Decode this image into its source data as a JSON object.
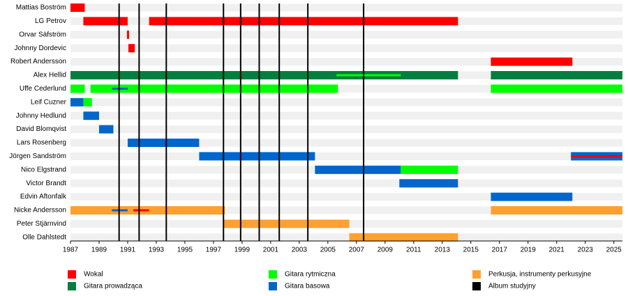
{
  "chart_data": {
    "type": "timeline",
    "xlim": [
      1987,
      2025.6
    ],
    "xticks": [
      1987,
      1989,
      1991,
      1993,
      1995,
      1997,
      1999,
      2001,
      2003,
      2005,
      2007,
      2009,
      2011,
      2013,
      2015,
      2017,
      2019,
      2021,
      2023,
      2025
    ],
    "roles": [
      {
        "name": "Wokal",
        "color": "#ff0000"
      },
      {
        "name": "Gitara prowadząca",
        "color": "#007f3f"
      },
      {
        "name": "Gitara rytmiczna",
        "color": "#00ff00"
      },
      {
        "name": "Gitara basowa",
        "color": "#0066cc"
      },
      {
        "name": "Perkusja, instrumenty perkusyjne",
        "color": "#ffa030"
      }
    ],
    "albums": {
      "name": "Album studyjny",
      "color": "#000000",
      "years": [
        1990.4,
        1991.8,
        1993.7,
        1997.7,
        1998.9,
        2000.2,
        2001.6,
        2003.6,
        2007.5
      ]
    },
    "members": [
      {
        "name": "Mattias Boström",
        "bars": [
          {
            "role": 0,
            "start": 1987,
            "end": 1988
          }
        ]
      },
      {
        "name": "LG Petrov",
        "bars": [
          {
            "role": 0,
            "start": 1987.9,
            "end": 1991
          },
          {
            "role": 0,
            "start": 1992.5,
            "end": 2014.1
          }
        ]
      },
      {
        "name": "Orvar Säfström",
        "bars": [
          {
            "role": 0,
            "start": 1990.95,
            "end": 1991.1
          }
        ]
      },
      {
        "name": "Johnny Dordevic",
        "bars": [
          {
            "role": 0,
            "start": 1991.05,
            "end": 1991.5
          }
        ]
      },
      {
        "name": "Robert Andersson",
        "bars": [
          {
            "role": 0,
            "start": 2016.4,
            "end": 2022.1
          }
        ]
      },
      {
        "name": "Alex Hellid",
        "bars": [
          {
            "role": 1,
            "start": 1987,
            "end": 2014.1
          },
          {
            "role": 1,
            "start": 2016.4,
            "end": 2025.6
          },
          {
            "role": 2,
            "start": 2005.6,
            "end": 2010.1,
            "thin": true
          }
        ]
      },
      {
        "name": "Uffe Cederlund",
        "bars": [
          {
            "role": 2,
            "start": 1987,
            "end": 1988
          },
          {
            "role": 2,
            "start": 1988.4,
            "end": 2005.7
          },
          {
            "role": 2,
            "start": 2016.4,
            "end": 2025.6
          },
          {
            "role": 3,
            "start": 1989.9,
            "end": 1991,
            "thin": true
          }
        ]
      },
      {
        "name": "Leif Cuzner",
        "bars": [
          {
            "role": 3,
            "start": 1987,
            "end": 1987.9
          },
          {
            "role": 2,
            "start": 1987.9,
            "end": 1988.5
          }
        ]
      },
      {
        "name": "Johnny Hedlund",
        "bars": [
          {
            "role": 3,
            "start": 1987.9,
            "end": 1989
          }
        ]
      },
      {
        "name": "David Blomqvist",
        "bars": [
          {
            "role": 3,
            "start": 1989,
            "end": 1990
          }
        ]
      },
      {
        "name": "Lars Rosenberg",
        "bars": [
          {
            "role": 3,
            "start": 1991,
            "end": 1996
          }
        ]
      },
      {
        "name": "Jörgen Sandström",
        "bars": [
          {
            "role": 3,
            "start": 1996,
            "end": 2004.1
          },
          {
            "role": 3,
            "start": 2022,
            "end": 2025.6
          },
          {
            "role": 0,
            "start": 2022,
            "end": 2025.6,
            "thin": true
          }
        ]
      },
      {
        "name": "Nico Elgstrand",
        "bars": [
          {
            "role": 3,
            "start": 2004.1,
            "end": 2010.1
          },
          {
            "role": 2,
            "start": 2010.1,
            "end": 2014.1
          }
        ]
      },
      {
        "name": "Victor Brandt",
        "bars": [
          {
            "role": 3,
            "start": 2010,
            "end": 2014.1
          }
        ]
      },
      {
        "name": "Edvin Aftonfalk",
        "bars": [
          {
            "role": 3,
            "start": 2016.4,
            "end": 2022.1
          }
        ]
      },
      {
        "name": "Nicke Andersson",
        "bars": [
          {
            "role": 4,
            "start": 1987,
            "end": 1997.8
          },
          {
            "role": 4,
            "start": 2016.4,
            "end": 2025.6
          },
          {
            "role": 3,
            "start": 1989.9,
            "end": 1991,
            "thin": true
          },
          {
            "role": 0,
            "start": 1991.4,
            "end": 1992.5,
            "thin": true
          }
        ]
      },
      {
        "name": "Peter Stjärnvind",
        "bars": [
          {
            "role": 4,
            "start": 1997.7,
            "end": 2006.5
          }
        ]
      },
      {
        "name": "Olle Dahlstedt",
        "bars": [
          {
            "role": 4,
            "start": 2006.5,
            "end": 2014.1
          }
        ]
      }
    ]
  }
}
